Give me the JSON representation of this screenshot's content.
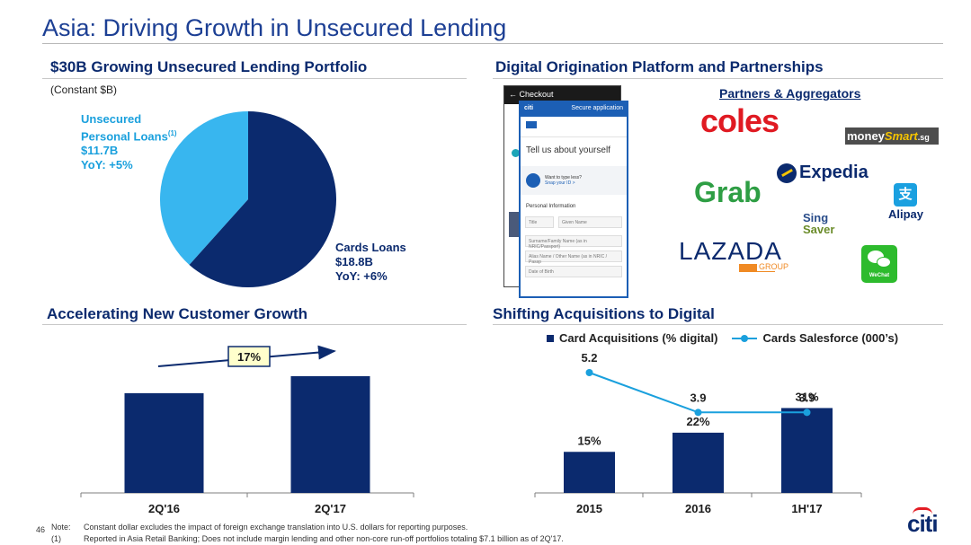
{
  "header": {
    "title": "Asia: Driving Growth in Unsecured Lending"
  },
  "portfolio": {
    "section_title": "$30B Growing Unsecured Lending Portfolio",
    "subtitle": "(Constant $B)",
    "unsecured_label_line1": "Unsecured",
    "unsecured_label_line2": "Personal Loans",
    "unsecured_footnote": "(1)",
    "unsecured_value": "$11.7B",
    "unsecured_yoy": "YoY: +5%",
    "cards_label": "Cards Loans",
    "cards_value": "$18.8B",
    "cards_yoy": "YoY: +6%",
    "colors": {
      "unsecured": "#38b6ef",
      "cards": "#0b2a6e"
    }
  },
  "digital": {
    "section_title": "Digital Origination Platform and Partnerships",
    "partners_title": "Partners & Aggregators",
    "phone": {
      "back_bar": "← Checkout",
      "front_brand": "citi",
      "front_secure": "Secure application",
      "heading": "Tell us about yourself",
      "prompt1": "Want to type less?",
      "prompt2": "Snap your ID >",
      "section": "Personal Information",
      "field_title": "Title",
      "field_given": "Given Name",
      "field_surname": "Surname/Family Name (as in NRIC/Passport)",
      "field_alias": "Alias Name / Other Name (as in NRIC / Passp",
      "field_dob": "Date of Birth"
    },
    "logos": {
      "coles": "coles",
      "moneysmart_a": "money",
      "moneysmart_b": "Smart",
      "moneysmart_c": ".sg",
      "expedia": "Expedia",
      "grab": "Grab",
      "alipay": "Alipay",
      "singsaver_a": "Sing",
      "singsaver_b": "Saver",
      "lazada": "LAZADA",
      "lazada_group": "GROUP",
      "wechat": "WeChat"
    }
  },
  "growth": {
    "section_title": "Accelerating New Customer Growth",
    "growth_label": "17%"
  },
  "shift": {
    "section_title": "Shifting Acquisitions to Digital",
    "legend_bar": "Card Acquisitions (% digital)",
    "legend_line": "Cards Salesforce (000’s)"
  },
  "chart_data": [
    {
      "type": "pie",
      "labels": [
        "Unsecured Personal Loans",
        "Cards Loans"
      ],
      "values": [
        11.7,
        18.8
      ],
      "title": "$30B Growing Unsecured Lending Portfolio",
      "subtitle": "(Constant $B)"
    },
    {
      "type": "bar",
      "title": "Accelerating New Customer Growth",
      "categories": [
        "2Q'16",
        "2Q'17"
      ],
      "values": [
        1.0,
        1.17
      ],
      "annotation": "17%"
    },
    {
      "type": "bar",
      "title": "Shifting Acquisitions to Digital",
      "categories": [
        "2015",
        "2016",
        "1H'17"
      ],
      "series": [
        {
          "name": "Card Acquisitions (% digital)",
          "type": "bar",
          "values": [
            15,
            22,
            31
          ],
          "labels": [
            "15%",
            "22%",
            "31%"
          ]
        },
        {
          "name": "Cards Salesforce (000’s)",
          "type": "line",
          "values": [
            5.2,
            3.9,
            3.9
          ],
          "labels": [
            "5.2",
            "3.9",
            "3.9"
          ]
        }
      ],
      "legend": "top"
    }
  ],
  "footer": {
    "page": "46",
    "note_label": "Note:",
    "note_text": "Constant dollar excludes the impact of foreign exchange translation into U.S. dollars for reporting purposes.",
    "fn1_label": "(1)",
    "fn1_text": "Reported in Asia Retail Banking; Does not include margin lending and other non-core run-off portfolios totaling $7.1 billion as of 2Q'17.",
    "logo": "citi"
  }
}
